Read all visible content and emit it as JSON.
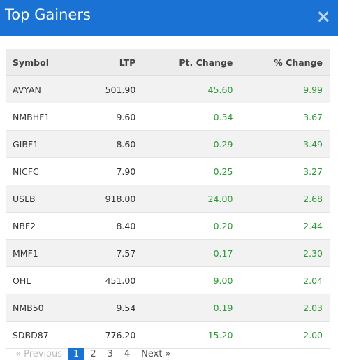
{
  "header": {
    "title": "Top Gainers",
    "close": "×"
  },
  "table": {
    "columns": [
      "Symbol",
      "LTP",
      "Pt. Change",
      "% Change"
    ],
    "rows": [
      [
        "AVYAN",
        "501.90",
        "45.60",
        "9.99"
      ],
      [
        "NMBHF1",
        "9.60",
        "0.34",
        "3.67"
      ],
      [
        "GIBF1",
        "8.60",
        "0.29",
        "3.49"
      ],
      [
        "NICFC",
        "7.90",
        "0.25",
        "3.27"
      ],
      [
        "USLB",
        "918.00",
        "24.00",
        "2.68"
      ],
      [
        "NBF2",
        "8.40",
        "0.20",
        "2.44"
      ],
      [
        "MMF1",
        "7.57",
        "0.17",
        "2.30"
      ],
      [
        "OHL",
        "451.00",
        "9.00",
        "2.04"
      ],
      [
        "NMB50",
        "9.54",
        "0.19",
        "2.03"
      ],
      [
        "SDBD87",
        "776.20",
        "15.20",
        "2.00"
      ]
    ]
  },
  "pagination": {
    "previous": "« Previous",
    "pages": [
      "1",
      "2",
      "3",
      "4"
    ],
    "active": 0,
    "next": "Next »"
  }
}
